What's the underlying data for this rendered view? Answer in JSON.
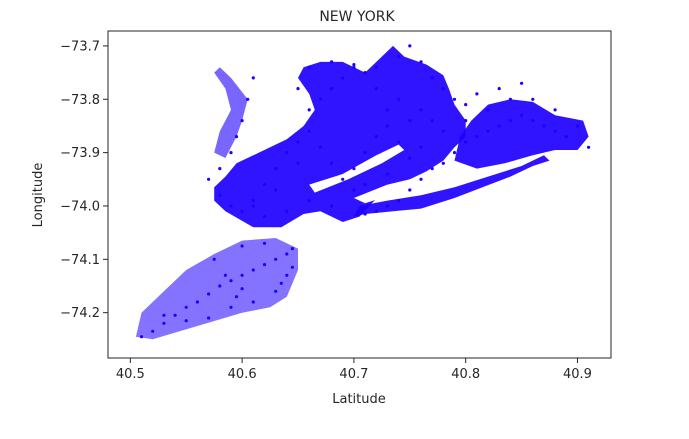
{
  "chart_data": {
    "type": "scatter",
    "title": "NEW YORK",
    "xlabel": "Latitude",
    "ylabel": "Longitude",
    "xlim": [
      40.48,
      40.93
    ],
    "ylim": [
      -74.285,
      -73.672
    ],
    "xticks": [
      40.5,
      40.6,
      40.7,
      40.8,
      40.9
    ],
    "xtick_labels": [
      "40.5",
      "40.6",
      "40.7",
      "40.8",
      "40.9"
    ],
    "yticks": [
      -73.7,
      -73.8,
      -73.9,
      -74.0,
      -74.1,
      -74.2
    ],
    "ytick_labels": [
      "−73.7",
      "−73.8",
      "−73.9",
      "−74.0",
      "−74.1",
      "−74.2"
    ],
    "grid": false,
    "legend": "none",
    "marker_color": "#1e00ff",
    "series": [
      {
        "points": [
          [
            40.51,
            -74.245
          ],
          [
            40.52,
            -74.235
          ],
          [
            40.53,
            -74.22
          ],
          [
            40.54,
            -74.205
          ],
          [
            40.55,
            -74.19
          ],
          [
            40.56,
            -74.18
          ],
          [
            40.57,
            -74.165
          ],
          [
            40.58,
            -74.15
          ],
          [
            40.59,
            -74.14
          ],
          [
            40.6,
            -74.13
          ],
          [
            40.61,
            -74.12
          ],
          [
            40.62,
            -74.11
          ],
          [
            40.63,
            -74.1
          ],
          [
            40.64,
            -74.09
          ],
          [
            40.645,
            -74.08
          ],
          [
            40.62,
            -74.07
          ],
          [
            40.6,
            -74.075
          ],
          [
            40.64,
            -74.13
          ],
          [
            40.63,
            -74.16
          ],
          [
            40.61,
            -74.18
          ],
          [
            40.59,
            -74.19
          ],
          [
            40.57,
            -74.21
          ],
          [
            40.55,
            -74.215
          ],
          [
            40.53,
            -74.205
          ],
          [
            40.575,
            -74.1
          ],
          [
            40.585,
            -74.13
          ],
          [
            40.6,
            -74.155
          ],
          [
            40.635,
            -74.145
          ],
          [
            40.645,
            -74.115
          ],
          [
            40.595,
            -74.17
          ],
          [
            40.61,
            -73.76
          ],
          [
            40.605,
            -73.8
          ],
          [
            40.6,
            -73.84
          ],
          [
            40.595,
            -73.87
          ],
          [
            40.59,
            -73.9
          ],
          [
            40.58,
            -73.93
          ],
          [
            40.57,
            -73.95
          ],
          [
            40.58,
            -73.98
          ],
          [
            40.59,
            -74.0
          ],
          [
            40.6,
            -74.01
          ],
          [
            40.61,
            -73.99
          ],
          [
            40.62,
            -73.96
          ],
          [
            40.63,
            -73.93
          ],
          [
            40.64,
            -73.9
          ],
          [
            40.65,
            -73.88
          ],
          [
            40.66,
            -73.86
          ],
          [
            40.67,
            -73.89
          ],
          [
            40.68,
            -73.92
          ],
          [
            40.69,
            -73.95
          ],
          [
            40.7,
            -73.97
          ],
          [
            40.66,
            -73.99
          ],
          [
            40.64,
            -74.01
          ],
          [
            40.62,
            -74.02
          ],
          [
            40.68,
            -74.0
          ],
          [
            40.7,
            -73.93
          ],
          [
            40.71,
            -73.9
          ],
          [
            40.72,
            -73.87
          ],
          [
            40.73,
            -73.85
          ],
          [
            40.74,
            -73.88
          ],
          [
            40.75,
            -73.91
          ],
          [
            40.73,
            -73.94
          ],
          [
            40.71,
            -73.96
          ],
          [
            40.65,
            -73.92
          ],
          [
            40.63,
            -73.97
          ],
          [
            40.61,
            -74.0
          ],
          [
            40.76,
            -73.95
          ],
          [
            40.75,
            -73.97
          ],
          [
            40.74,
            -73.99
          ],
          [
            40.73,
            -74.0
          ],
          [
            40.72,
            -74.01
          ],
          [
            40.71,
            -74.015
          ],
          [
            40.77,
            -73.93
          ],
          [
            40.78,
            -73.92
          ],
          [
            40.79,
            -73.9
          ],
          [
            40.8,
            -73.88
          ],
          [
            40.81,
            -73.87
          ],
          [
            40.82,
            -73.86
          ],
          [
            40.83,
            -73.85
          ],
          [
            40.84,
            -73.84
          ],
          [
            40.85,
            -73.83
          ],
          [
            40.86,
            -73.84
          ],
          [
            40.87,
            -73.85
          ],
          [
            40.88,
            -73.86
          ],
          [
            40.89,
            -73.87
          ],
          [
            40.9,
            -73.85
          ],
          [
            40.91,
            -73.89
          ],
          [
            40.88,
            -73.82
          ],
          [
            40.86,
            -73.8
          ],
          [
            40.84,
            -73.8
          ],
          [
            40.82,
            -73.82
          ],
          [
            40.8,
            -73.84
          ],
          [
            40.78,
            -73.86
          ],
          [
            40.76,
            -73.89
          ],
          [
            40.72,
            -73.78
          ],
          [
            40.71,
            -73.75
          ],
          [
            40.7,
            -73.74
          ],
          [
            40.69,
            -73.76
          ],
          [
            40.68,
            -73.78
          ],
          [
            40.67,
            -73.8
          ],
          [
            40.66,
            -73.82
          ],
          [
            40.65,
            -73.78
          ],
          [
            40.66,
            -73.74
          ],
          [
            40.68,
            -73.73
          ],
          [
            40.7,
            -73.735
          ],
          [
            40.72,
            -73.74
          ],
          [
            40.74,
            -73.72
          ],
          [
            40.75,
            -73.7
          ],
          [
            40.76,
            -73.73
          ],
          [
            40.77,
            -73.76
          ],
          [
            40.78,
            -73.78
          ],
          [
            40.79,
            -73.8
          ],
          [
            40.8,
            -73.81
          ],
          [
            40.81,
            -73.79
          ],
          [
            40.83,
            -73.78
          ],
          [
            40.85,
            -73.77
          ],
          [
            40.76,
            -73.82
          ],
          [
            40.74,
            -73.8
          ],
          [
            40.73,
            -73.82
          ],
          [
            40.75,
            -73.84
          ],
          [
            40.77,
            -73.84
          ]
        ]
      }
    ]
  }
}
